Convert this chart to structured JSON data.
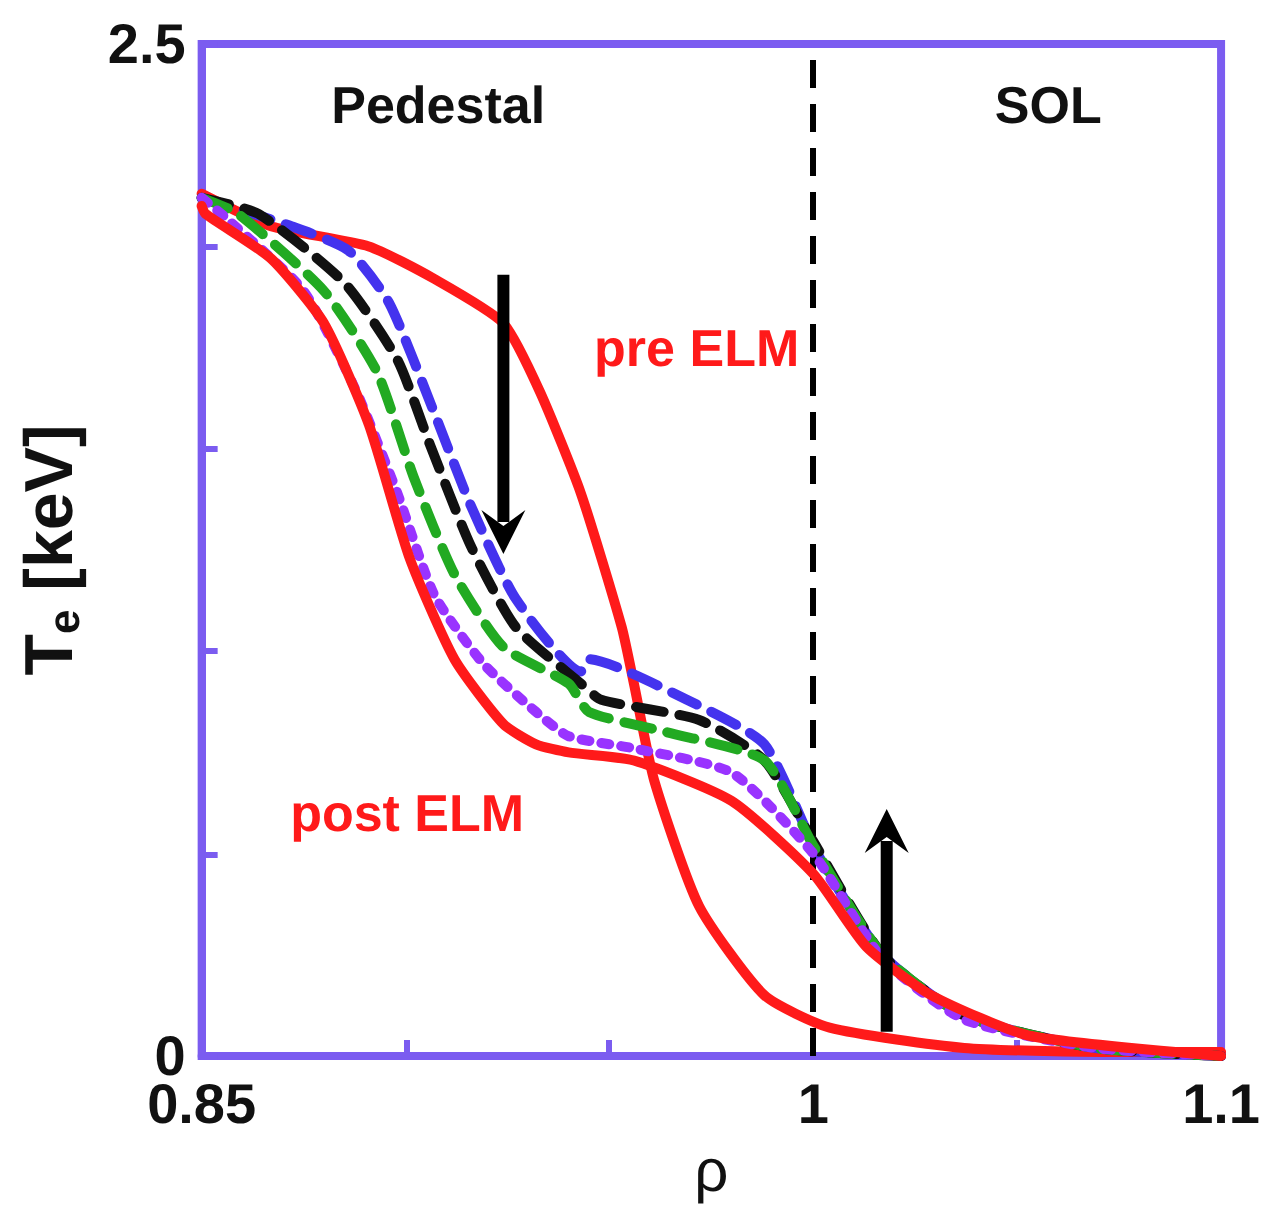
{
  "chart_data": {
    "type": "line",
    "xlabel": "ρ",
    "ylabel": "T$_{e}$ [keV]",
    "xlim": [
      0.85,
      1.1
    ],
    "ylim": [
      0,
      2.5
    ],
    "xticks": [
      0.85,
      {
        "value": 0.9,
        "label": null
      },
      {
        "value": 0.95,
        "label": null
      },
      1,
      {
        "value": 1.05,
        "label": null
      },
      1.1
    ],
    "yticks": [
      0,
      {
        "value": 0.5,
        "label": null
      },
      {
        "value": 1,
        "label": null
      },
      {
        "value": 1.5,
        "label": null
      },
      {
        "value": 2,
        "label": null
      },
      2.5
    ],
    "grid": false,
    "marker": "none",
    "ref_lines": [
      {
        "axis": "x",
        "value": 1,
        "color": "#000000",
        "line_style": "dashed"
      }
    ],
    "annotations": [
      "Pedestal",
      "SOL",
      "pre ELM",
      "post ELM"
    ],
    "series": [
      {
        "color": "#ff1a1a",
        "line_style": "solid",
        "x": [
          0.85,
          0.867,
          0.891,
          0.907,
          0.924,
          0.933,
          0.943,
          0.953,
          0.956,
          0.961,
          0.972,
          0.988,
          1.004,
          1.037,
          1.071,
          1.1
        ],
        "values": [
          2.13,
          2.05,
          2.0,
          1.92,
          1.81,
          1.64,
          1.39,
          1.06,
          0.92,
          0.68,
          0.37,
          0.15,
          0.07,
          0.02,
          0.01,
          0.01
        ]
      },
      {
        "color": "#4433ee",
        "line_style": "dashed",
        "x": [
          0.85,
          0.872,
          0.886,
          0.896,
          0.907,
          0.916,
          0.927,
          0.943,
          0.945,
          0.969,
          0.988,
          1.001,
          1.017,
          1.037,
          1.069,
          1.1
        ],
        "values": [
          2.12,
          2.05,
          1.99,
          1.86,
          1.59,
          1.36,
          1.13,
          0.95,
          0.98,
          0.88,
          0.77,
          0.5,
          0.25,
          0.1,
          0.02,
          0.0
        ]
      },
      {
        "color": "#111111",
        "line_style": "dashed",
        "x": [
          0.85,
          0.864,
          0.885,
          0.898,
          0.906,
          0.916,
          0.927,
          0.943,
          0.948,
          0.972,
          0.988,
          1.0,
          1.017,
          1.037,
          1.069,
          1.1
        ],
        "values": [
          2.12,
          2.08,
          1.91,
          1.72,
          1.51,
          1.26,
          1.06,
          0.92,
          0.88,
          0.83,
          0.73,
          0.53,
          0.25,
          0.1,
          0.02,
          0.0
        ]
      },
      {
        "color": "#22aa22",
        "line_style": "dashed",
        "x": [
          0.85,
          0.859,
          0.88,
          0.893,
          0.902,
          0.912,
          0.924,
          0.94,
          0.945,
          0.964,
          0.988,
          1.0,
          1.017,
          1.037,
          1.069,
          1.1
        ],
        "values": [
          2.12,
          2.08,
          1.89,
          1.69,
          1.43,
          1.19,
          1.01,
          0.92,
          0.85,
          0.8,
          0.73,
          0.52,
          0.25,
          0.1,
          0.02,
          0.0
        ]
      },
      {
        "color": "#9933ff",
        "line_style": "dotted",
        "x": [
          0.85,
          0.856,
          0.875,
          0.888,
          0.898,
          0.907,
          0.919,
          0.932,
          0.94,
          0.956,
          0.98,
          1.0,
          1.017,
          1.037,
          1.069,
          1.1
        ],
        "values": [
          2.12,
          2.07,
          1.89,
          1.64,
          1.39,
          1.14,
          0.97,
          0.85,
          0.79,
          0.76,
          0.7,
          0.5,
          0.24,
          0.09,
          0.02,
          0.0
        ]
      },
      {
        "color": "#ff1a1a",
        "line_style": "solid",
        "x": [
          0.85,
          0.851,
          0.867,
          0.88,
          0.891,
          0.901,
          0.912,
          0.924,
          0.932,
          0.94,
          0.956,
          0.98,
          1.0,
          1.013,
          1.029,
          1.053,
          1.1
        ],
        "values": [
          2.1,
          2.08,
          1.97,
          1.81,
          1.56,
          1.23,
          0.98,
          0.82,
          0.77,
          0.75,
          0.73,
          0.63,
          0.45,
          0.27,
          0.15,
          0.05,
          0.0
        ]
      }
    ]
  }
}
